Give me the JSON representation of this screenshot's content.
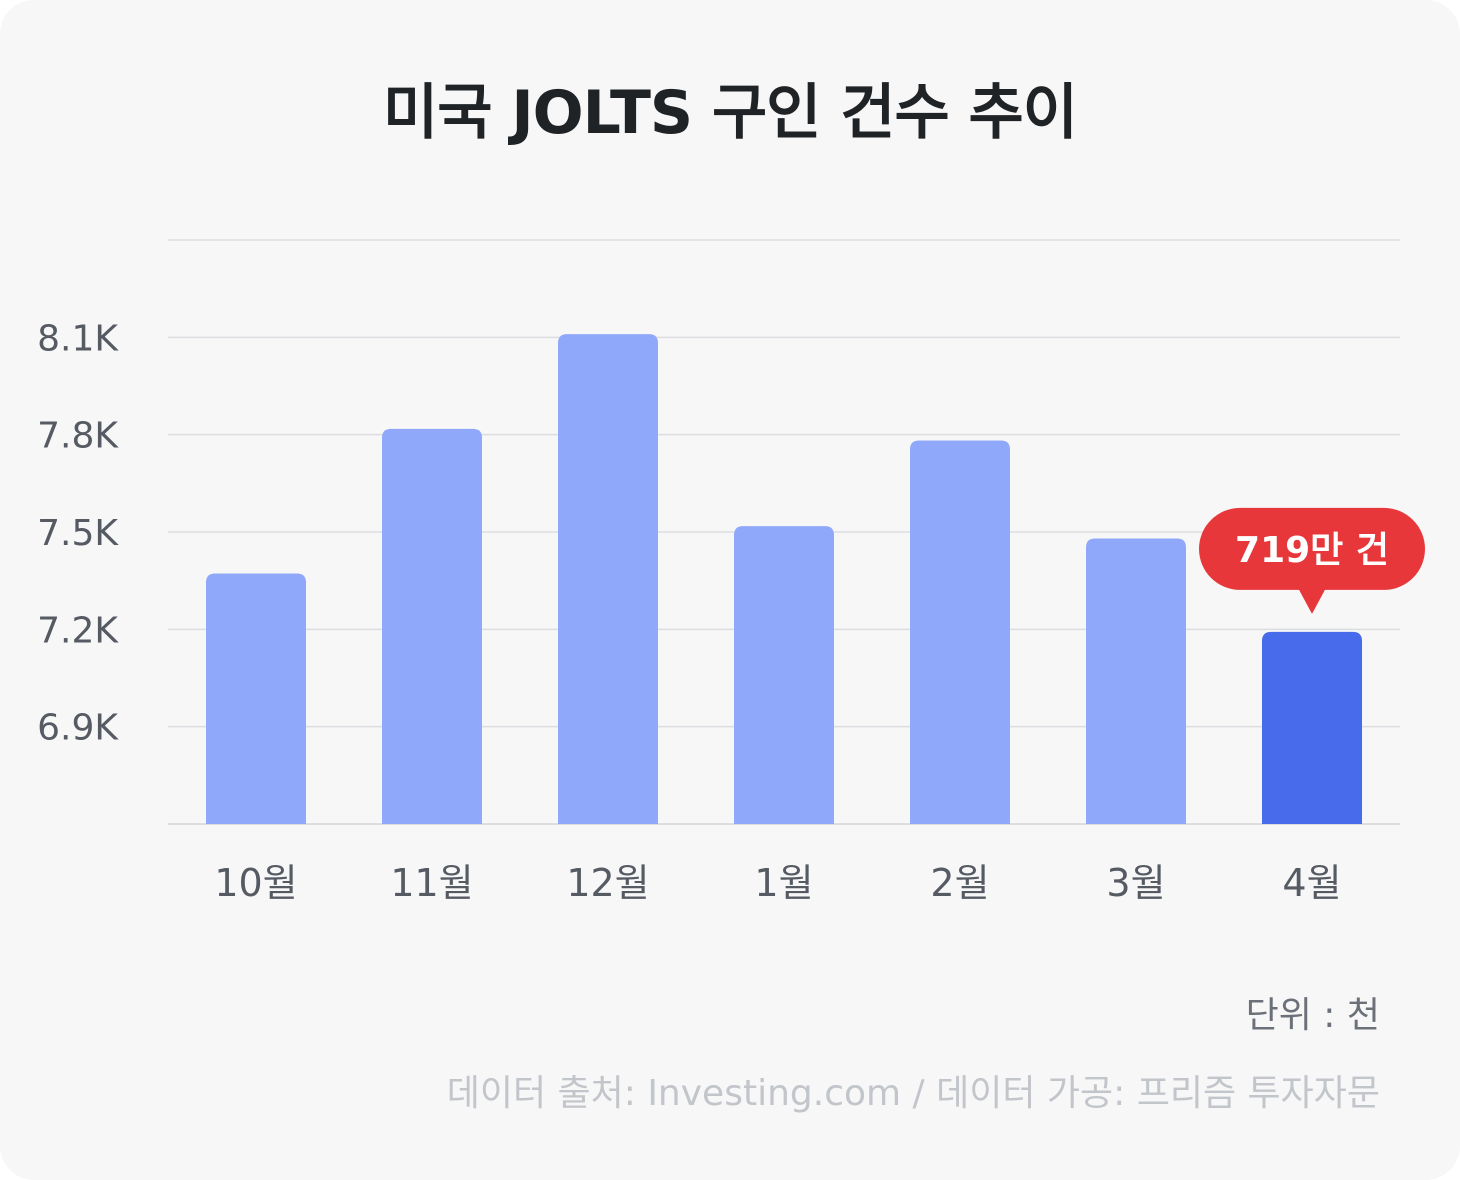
{
  "title": "미국 JOLTS 구인 건수 추이",
  "unit_label": "단위 : 천",
  "source_label": "데이터 출처: Investing.com / 데이터 가공: 프리즘 투자자문",
  "colors": {
    "background": "#f7f7f8",
    "bar": "#90a8f9",
    "bar_highlight": "#476bea",
    "callout": "#e8373a",
    "grid": "#dcdde0",
    "tick_text": "#555a63"
  },
  "chart_data": {
    "type": "bar",
    "categories": [
      "10월",
      "11월",
      "12월",
      "1월",
      "2월",
      "3월",
      "4월"
    ],
    "values": [
      7372,
      7818,
      8110,
      7518,
      7782,
      7480,
      7192
    ],
    "ylim": [
      6600,
      8400
    ],
    "yticks": [
      6900,
      7200,
      7500,
      7800,
      8100
    ],
    "ytick_labels": [
      "6.9K",
      "7.2K",
      "7.5K",
      "7.8K",
      "8.1K"
    ],
    "grid": true,
    "highlight_index": 6,
    "annotation": {
      "index": 6,
      "text": "719만 건"
    }
  }
}
